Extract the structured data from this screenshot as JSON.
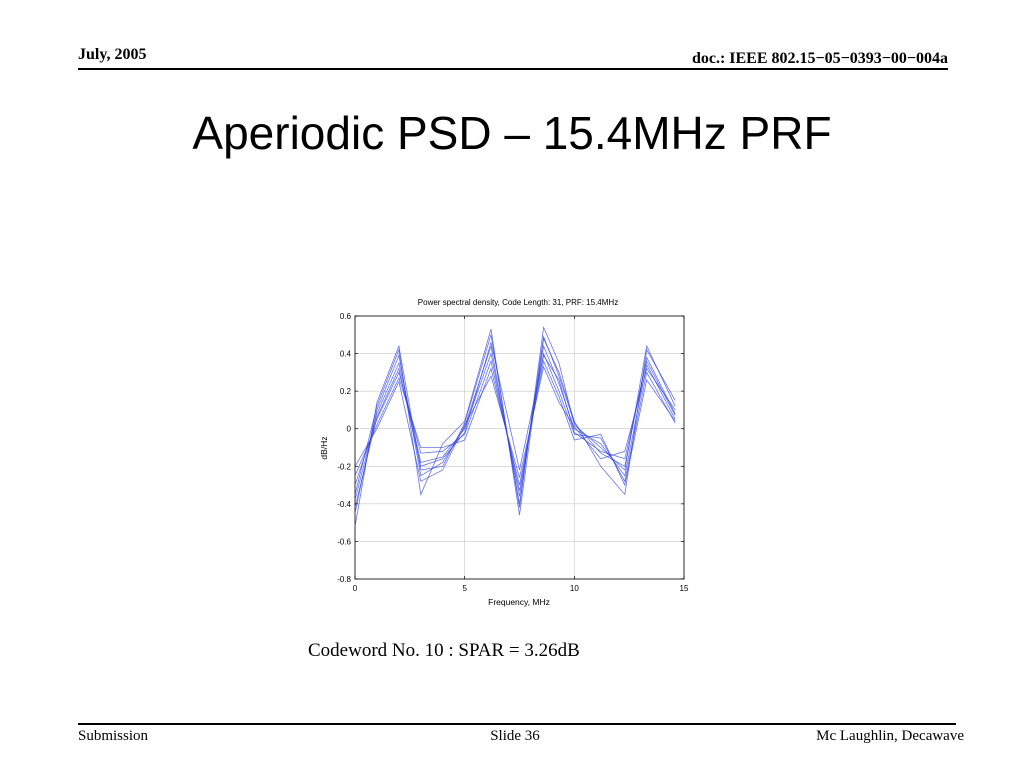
{
  "header": {
    "date": "July, 2005",
    "doc_id": "doc.: IEEE 802.15−05−0393−00−004a"
  },
  "slide": {
    "title": "Aperiodic PSD – 15.4MHz PRF",
    "caption": "Codeword No. 10 : SPAR = 3.26dB"
  },
  "footer": {
    "left": "Submission",
    "center": "Slide 36",
    "right": "Mc Laughlin, Decawave"
  },
  "colors": {
    "series": "#3344dd",
    "grid": "#c8c8c8",
    "axis": "#000000"
  },
  "chart_data": {
    "type": "line",
    "title": "Power spectral density, Code Length: 31, PRF:  15.4MHz",
    "xlabel": "Frequency, MHz",
    "ylabel": "dB/Hz",
    "xlim": [
      0,
      15
    ],
    "ylim": [
      -0.8,
      0.6
    ],
    "xticks": [
      0,
      5,
      10,
      15
    ],
    "yticks": [
      0.6,
      0.4,
      0.2,
      0,
      -0.2,
      -0.4,
      -0.6,
      -0.8
    ],
    "grid": true,
    "x": [
      0,
      1,
      2,
      3,
      4,
      5,
      6.2,
      7.5,
      8.6,
      9.3,
      10,
      11.2,
      12.3,
      13.3,
      14.6
    ],
    "series": [
      {
        "values": [
          -0.52,
          0.14,
          0.44,
          -0.22,
          -0.2,
          0.03,
          0.5,
          -0.42,
          0.54,
          0.35,
          0.02,
          -0.1,
          -0.22,
          0.44,
          0.12
        ]
      },
      {
        "values": [
          -0.45,
          0.1,
          0.39,
          -0.25,
          -0.18,
          0.01,
          0.44,
          -0.4,
          0.49,
          0.28,
          0.03,
          -0.13,
          -0.2,
          0.38,
          0.08
        ]
      },
      {
        "values": [
          -0.38,
          0.08,
          0.35,
          -0.18,
          -0.15,
          0.0,
          0.4,
          -0.36,
          0.44,
          0.24,
          0.0,
          -0.08,
          -0.25,
          0.34,
          0.05
        ]
      },
      {
        "values": [
          -0.3,
          0.05,
          0.3,
          -0.13,
          -0.12,
          -0.03,
          0.36,
          -0.33,
          0.4,
          0.2,
          -0.03,
          -0.05,
          -0.28,
          0.3,
          0.03
        ]
      },
      {
        "values": [
          -0.25,
          0.02,
          0.27,
          -0.1,
          -0.1,
          -0.06,
          0.32,
          -0.3,
          0.36,
          0.17,
          -0.06,
          -0.03,
          -0.3,
          0.26,
          0.04
        ]
      },
      {
        "values": [
          -0.2,
          0.0,
          0.25,
          -0.28,
          -0.22,
          0.02,
          0.28,
          -0.26,
          0.33,
          0.14,
          0.01,
          -0.16,
          -0.12,
          0.32,
          0.1
        ]
      },
      {
        "values": [
          -0.35,
          0.12,
          0.42,
          -0.35,
          -0.08,
          0.04,
          0.53,
          -0.46,
          0.48,
          0.3,
          0.04,
          -0.2,
          -0.35,
          0.42,
          0.15
        ]
      },
      {
        "values": [
          -0.42,
          0.06,
          0.32,
          -0.2,
          -0.16,
          -0.02,
          0.46,
          -0.22,
          0.39,
          0.26,
          -0.02,
          -0.12,
          -0.16,
          0.36,
          0.07
        ]
      }
    ]
  }
}
